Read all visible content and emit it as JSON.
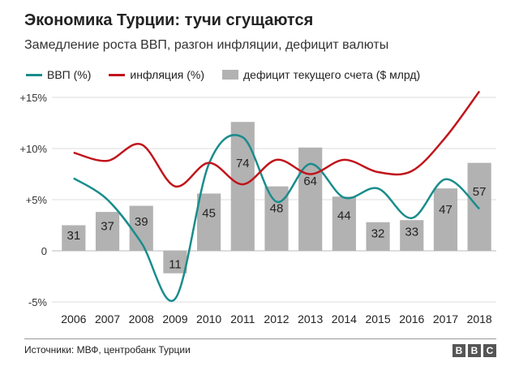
{
  "header": {
    "title": "Экономика Турции: тучи сгущаются",
    "subtitle": "Замедление роста ВВП, разгон инфляции, дефицит валюты"
  },
  "legend": {
    "gdp": "ВВП (%)",
    "inflation": "инфляция (%)",
    "deficit": "дефицит текущего счета ($ млрд)"
  },
  "footer": {
    "source": "Источники: МВФ, центробанк Турции",
    "logo": "BBC"
  },
  "colors": {
    "gdp": "#1a8c8c",
    "inflation": "#c0141a",
    "bars": "#b2b2b2",
    "grid": "#dcdcdc",
    "zero": "#bbbbbb"
  },
  "chart_data": {
    "type": "bar",
    "categories": [
      "2006",
      "2007",
      "2008",
      "2009",
      "2010",
      "2011",
      "2012",
      "2013",
      "2014",
      "2015",
      "2016",
      "2017",
      "2018"
    ],
    "y_ticks": [
      {
        "value": 15,
        "label": "+15%"
      },
      {
        "value": 10,
        "label": "+10%"
      },
      {
        "value": 5,
        "label": "+5%"
      },
      {
        "value": 0,
        "label": "0"
      },
      {
        "value": -5,
        "label": "-5%"
      }
    ],
    "ylim": [
      -5,
      15
    ],
    "grid": true,
    "legend_position": "top",
    "series": [
      {
        "name": "дефицит текущего счета ($ млрд)",
        "kind": "bar",
        "labels": [
          "31",
          "37",
          "39",
          "11",
          "45",
          "74",
          "48",
          "64",
          "44",
          "32",
          "33",
          "47",
          "57"
        ],
        "values": [
          2.5,
          3.8,
          4.4,
          -2.2,
          5.6,
          12.6,
          6.3,
          10.1,
          5.3,
          2.8,
          3.0,
          6.1,
          8.6
        ]
      },
      {
        "name": "ВВП (%)",
        "kind": "line",
        "values": [
          7.1,
          5.0,
          0.8,
          -4.7,
          8.5,
          11.1,
          4.8,
          8.5,
          5.2,
          6.1,
          3.2,
          7.0,
          4.1
        ]
      },
      {
        "name": "инфляция (%)",
        "kind": "line",
        "values": [
          9.6,
          8.8,
          10.4,
          6.3,
          8.6,
          6.5,
          8.9,
          7.5,
          8.9,
          7.7,
          7.8,
          11.1,
          15.6
        ]
      }
    ]
  }
}
